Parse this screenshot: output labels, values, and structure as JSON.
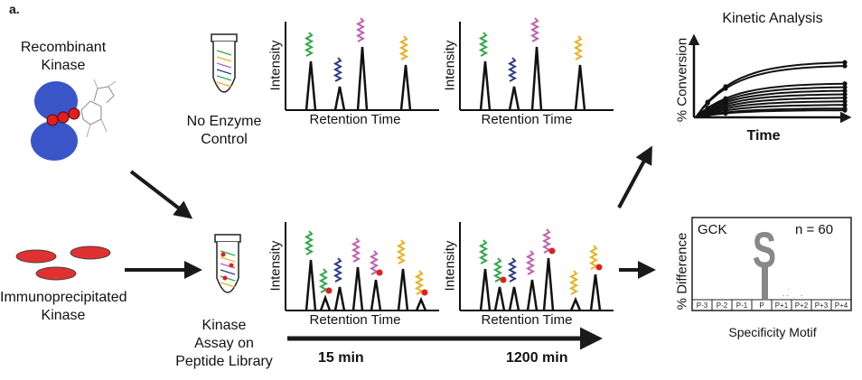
{
  "panel_label": "a.",
  "recombinant_label": [
    "Recombinant",
    "Kinase"
  ],
  "immuno_label": [
    "Immunoprecipitated",
    "Kinase"
  ],
  "no_enzyme_label": [
    "No Enzyme",
    "Control"
  ],
  "assay_label": [
    "Kinase",
    "Assay on",
    "Peptide Library"
  ],
  "chromatogram": {
    "y_label": "Intensity",
    "x_label": "Retention Time"
  },
  "time_15": "15 min",
  "time_1200": "1200 min",
  "kinetic": {
    "title": "Kinetic Analysis",
    "y_label": "% Conversion",
    "x_label": "Time"
  },
  "motif": {
    "y_label": "% Difference",
    "kinase": "GCK",
    "n": "n = 60",
    "positions": [
      "P-3",
      "P-2",
      "P-1",
      "P",
      "P+1",
      "P+2",
      "P+3",
      "P+4"
    ],
    "caption": "Specificity Motif",
    "letter": "S"
  },
  "colors": {
    "kinase_blue": "#3a55c8",
    "phosphate_red": "#e02020",
    "peptide_green": "#2ea84a",
    "peptide_navy": "#2b3a8a",
    "peptide_magenta": "#c060b0",
    "peptide_yellow": "#e8b020",
    "dish_red": "#e03030",
    "arrow": "#1a1a1a",
    "motif_gray": "#888888"
  }
}
